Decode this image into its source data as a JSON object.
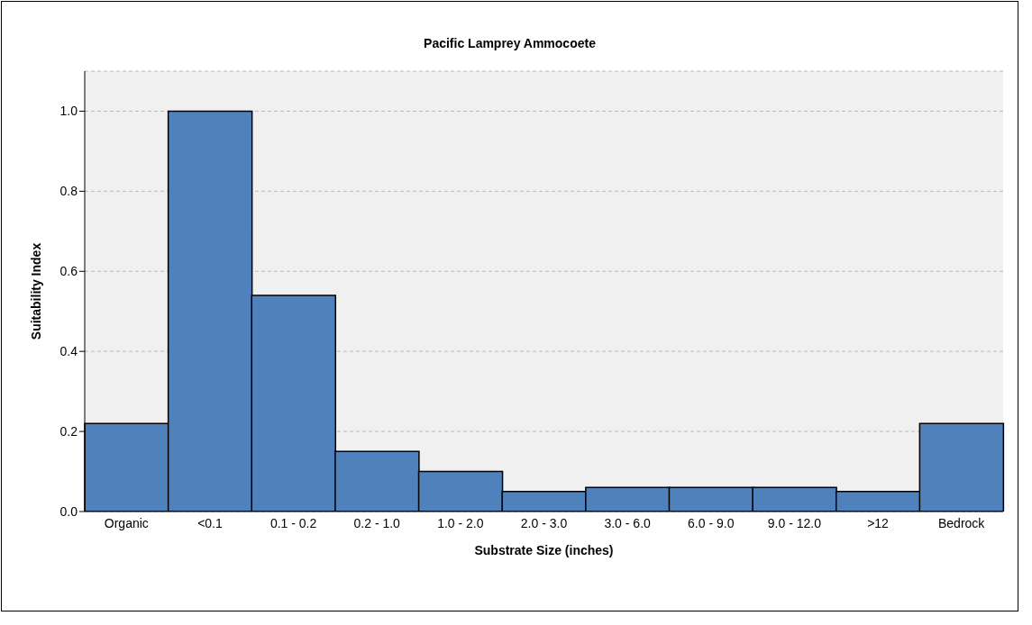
{
  "chart_data": {
    "type": "bar",
    "title": "Pacific Lamprey Ammocoete",
    "xlabel": "Substrate Size (inches)",
    "ylabel": "Suitability Index",
    "categories": [
      "Organic",
      "<0.1",
      "0.1 - 0.2",
      "0.2 - 1.0",
      "1.0 - 2.0",
      "2.0 - 3.0",
      "3.0 - 6.0",
      "6.0 - 9.0",
      "9.0 - 12.0",
      ">12",
      "Bedrock"
    ],
    "values": [
      0.22,
      1.0,
      0.54,
      0.15,
      0.1,
      0.05,
      0.06,
      0.06,
      0.06,
      0.05,
      0.22
    ],
    "color": "#4f81bd",
    "ylim": [
      0,
      1.1
    ],
    "yticks": [
      {
        "value": 0,
        "label": "0.0"
      },
      {
        "value": 0.2,
        "label": "0.2"
      },
      {
        "value": 0.4,
        "label": "0.4"
      },
      {
        "value": 0.6,
        "label": "0.6"
      },
      {
        "value": 0.8,
        "label": "0.8"
      },
      {
        "value": 1,
        "label": "1.0"
      }
    ],
    "grid": "y",
    "legend": false
  }
}
